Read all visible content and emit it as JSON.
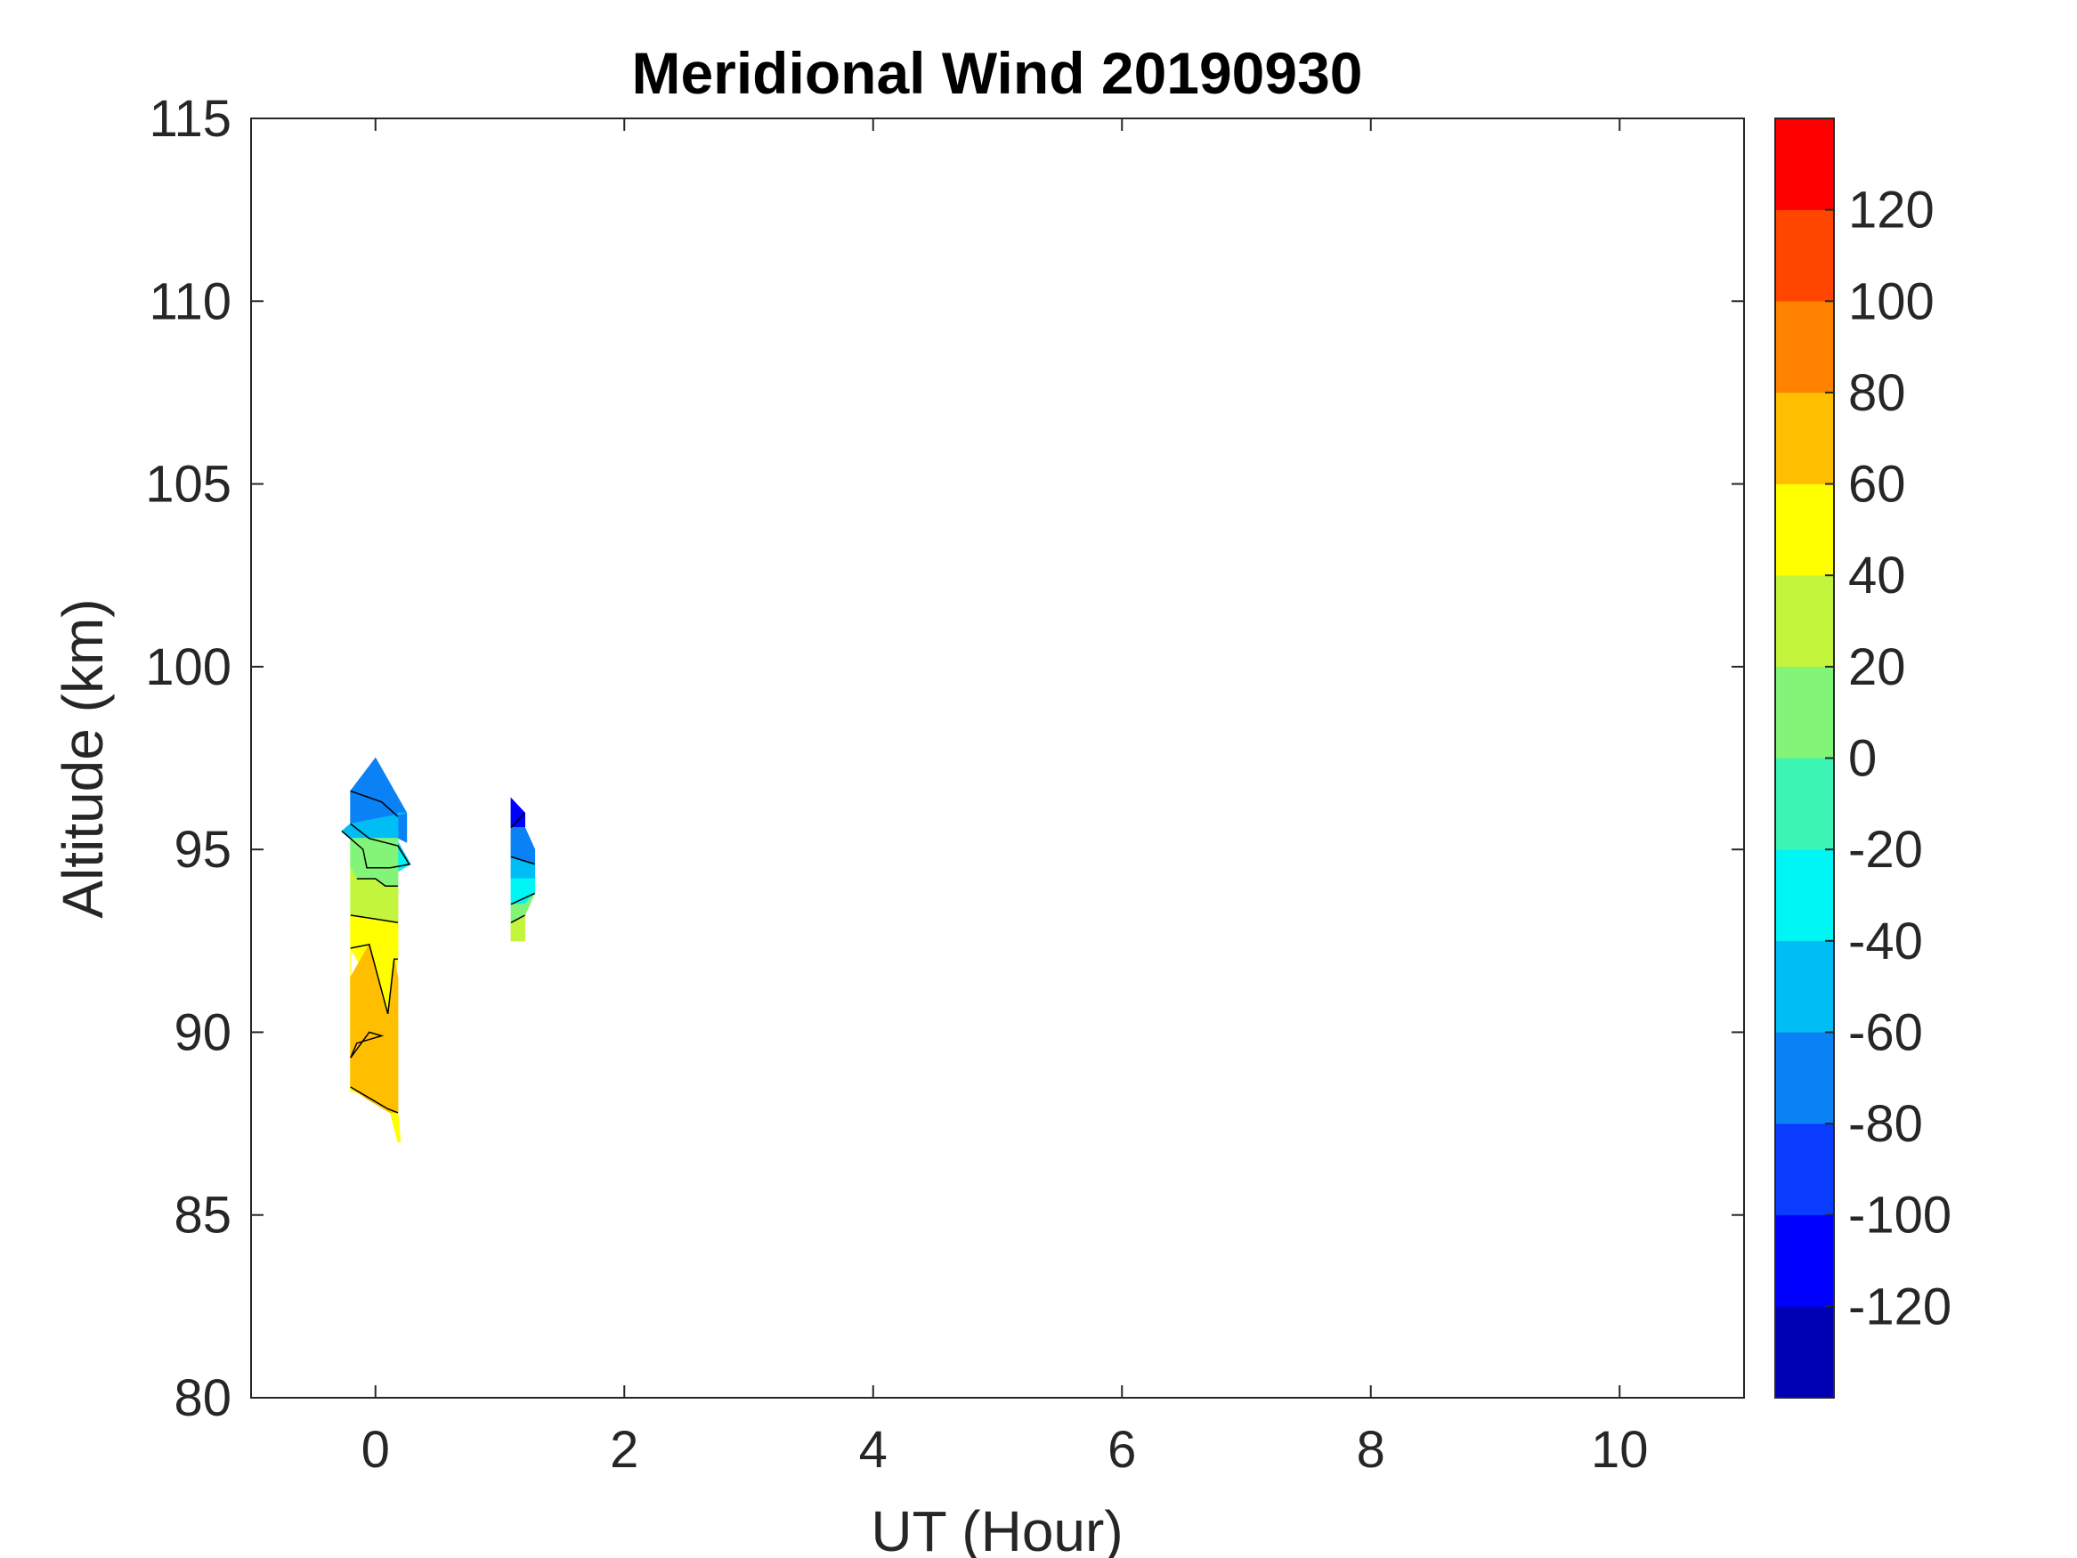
{
  "chart_data": {
    "type": "filled-contour",
    "title": "Meridional Wind 20190930",
    "xlabel": "UT (Hour)",
    "ylabel": "Altitude (km)",
    "xlim": [
      -1,
      11
    ],
    "ylim": [
      80,
      115
    ],
    "xticks": [
      0,
      2,
      4,
      6,
      8,
      10
    ],
    "yticks": [
      80,
      85,
      90,
      95,
      100,
      105,
      110,
      115
    ],
    "grid": false,
    "colorbar": {
      "position": "right",
      "range": [
        -140,
        140
      ],
      "ticks": [
        -120,
        -100,
        -80,
        -60,
        -40,
        -20,
        0,
        20,
        40,
        60,
        80,
        100,
        120
      ],
      "levels": [
        {
          "from": -140,
          "to": -120,
          "color": "#0000b4"
        },
        {
          "from": -120,
          "to": -100,
          "color": "#0000ff"
        },
        {
          "from": -100,
          "to": -80,
          "color": "#0a3cff"
        },
        {
          "from": -80,
          "to": -60,
          "color": "#0a82f5"
        },
        {
          "from": -60,
          "to": -40,
          "color": "#00bef5"
        },
        {
          "from": -40,
          "to": -20,
          "color": "#00f5f5"
        },
        {
          "from": -20,
          "to": 0,
          "color": "#3cf5b4"
        },
        {
          "from": 0,
          "to": 20,
          "color": "#82f578"
        },
        {
          "from": 20,
          "to": 40,
          "color": "#c3f53c"
        },
        {
          "from": 40,
          "to": 60,
          "color": "#ffff00"
        },
        {
          "from": 60,
          "to": 80,
          "color": "#ffbe00"
        },
        {
          "from": 80,
          "to": 100,
          "color": "#ff8200"
        },
        {
          "from": 100,
          "to": 120,
          "color": "#ff4600"
        },
        {
          "from": 120,
          "to": 140,
          "color": "#ff0000"
        }
      ]
    },
    "regions": [
      {
        "name": "column-0UT",
        "value": -80,
        "ut": [
          0,
          0.25,
          0.25,
          0.07,
          -0.2,
          -0.2
        ],
        "alt": [
          97.5,
          96.0,
          95.2,
          95.5,
          95.7,
          96.6
        ]
      },
      {
        "name": "column-0UT",
        "value": -50,
        "ut": [
          0.18,
          0.18,
          0.28,
          0.12,
          -0.07,
          -0.1,
          -0.27,
          -0.2,
          0.25
        ],
        "alt": [
          96.0,
          95.2,
          94.6,
          94.5,
          94.5,
          95.0,
          95.5,
          95.7,
          96.0
        ]
      },
      {
        "name": "column-0UT",
        "value": -30,
        "ut": [
          0.28,
          0.18,
          0.12,
          -0.07,
          -0.1,
          -0.27,
          -0.2,
          0.18,
          0.18
        ],
        "alt": [
          94.6,
          94.4,
          94.5,
          94.5,
          95.0,
          95.5,
          95.3,
          95.3,
          95.0
        ]
      },
      {
        "name": "column-0UT",
        "value": 10,
        "ut": [
          0.18,
          0.18,
          0.08,
          0.0,
          -0.15,
          -0.2,
          -0.2,
          0.18
        ],
        "alt": [
          95.3,
          94.0,
          94.0,
          94.2,
          94.2,
          94.5,
          95.3,
          95.3
        ]
      },
      {
        "name": "column-0UT",
        "value": 30,
        "ut": [
          0.18,
          0.18,
          -0.2,
          -0.2,
          -0.15,
          0.0,
          0.08,
          0.18
        ],
        "alt": [
          94.0,
          93.0,
          93.2,
          94.5,
          94.2,
          94.2,
          94.0,
          94.0
        ]
      },
      {
        "name": "column-0UT",
        "value": 50,
        "ut": [
          0.18,
          0.18,
          0.1,
          -0.2,
          -0.2,
          -0.2,
          -0.2,
          -0.08,
          0.12,
          0.18,
          0.2,
          0.18,
          0.18,
          0.18,
          0.0,
          -0.2,
          -0.2
        ],
        "alt": [
          93.0,
          92.0,
          90.5,
          92.3,
          91.5,
          88.5,
          88.5,
          88.2,
          87.8,
          87.0,
          87.0,
          87.8,
          87.8,
          88.0,
          88.2,
          88.4,
          93.2
        ]
      },
      {
        "name": "column-0UT",
        "value": 70,
        "ut": [
          0.15,
          0.1,
          -0.05,
          -0.2,
          -0.2,
          -0.2,
          -0.08,
          0.12,
          0.18,
          0.18,
          0.18,
          0.15
        ],
        "alt": [
          92.0,
          90.5,
          92.4,
          91.5,
          90.0,
          88.5,
          88.2,
          87.8,
          87.8,
          90.0,
          91.5,
          92.0
        ]
      },
      {
        "name": "column-1.1UT",
        "value": -110,
        "ut": [
          1.09,
          1.2,
          1.2,
          1.09
        ],
        "alt": [
          96.4,
          96.0,
          95.6,
          95.6
        ]
      },
      {
        "name": "column-1.1UT",
        "value": -70,
        "ut": [
          1.09,
          1.2,
          1.28,
          1.28,
          1.09
        ],
        "alt": [
          95.6,
          95.6,
          95.0,
          94.6,
          94.8
        ]
      },
      {
        "name": "column-1.1UT",
        "value": -50,
        "ut": [
          1.09,
          1.28,
          1.28,
          1.09
        ],
        "alt": [
          94.8,
          94.6,
          94.2,
          94.2
        ]
      },
      {
        "name": "column-1.1UT",
        "value": -30,
        "ut": [
          1.09,
          1.28,
          1.28,
          1.2,
          1.09
        ],
        "alt": [
          94.2,
          94.2,
          93.8,
          93.5,
          93.5
        ]
      },
      {
        "name": "column-1.1UT",
        "value": 10,
        "ut": [
          1.09,
          1.2,
          1.28,
          1.2,
          1.09
        ],
        "alt": [
          93.5,
          93.5,
          93.8,
          93.2,
          93.0
        ]
      },
      {
        "name": "column-1.1UT",
        "value": 30,
        "ut": [
          1.09,
          1.2,
          1.2,
          1.09
        ],
        "alt": [
          93.0,
          93.2,
          92.5,
          92.5
        ]
      }
    ],
    "contours": [
      {
        "ut": [
          -0.2,
          0.05,
          0.18
        ],
        "alt": [
          96.6,
          96.3,
          95.9
        ]
      },
      {
        "ut": [
          -0.2,
          -0.05,
          0.18,
          0.27
        ],
        "alt": [
          95.7,
          95.3,
          95.1,
          94.6
        ]
      },
      {
        "ut": [
          -0.27,
          -0.1,
          -0.07,
          0.12,
          0.28
        ],
        "alt": [
          95.5,
          95.0,
          94.5,
          94.5,
          94.6
        ]
      },
      {
        "ut": [
          -0.15,
          0.0,
          0.08,
          0.18
        ],
        "alt": [
          94.2,
          94.2,
          94.0,
          94.0
        ]
      },
      {
        "ut": [
          -0.2,
          0.0,
          0.18
        ],
        "alt": [
          93.2,
          93.1,
          93.0
        ]
      },
      {
        "ut": [
          -0.2,
          -0.05,
          0.1,
          0.15,
          0.18
        ],
        "alt": [
          92.3,
          92.4,
          90.5,
          92.0,
          92.0
        ]
      },
      {
        "ut": [
          -0.2,
          -0.05,
          0.1,
          0.18,
          0.18
        ],
        "alt": [
          88.5,
          88.2,
          87.9,
          87.8,
          87.8
        ]
      },
      {
        "ut": [
          -0.2,
          -0.05,
          0.05,
          -0.15,
          -0.2
        ],
        "alt": [
          89.3,
          90.0,
          89.9,
          89.7,
          89.3
        ]
      },
      {
        "ut": [
          1.09,
          1.2
        ],
        "alt": [
          95.6,
          96.0
        ]
      },
      {
        "ut": [
          1.09,
          1.28
        ],
        "alt": [
          94.8,
          94.6
        ]
      },
      {
        "ut": [
          1.09,
          1.28
        ],
        "alt": [
          93.5,
          93.8
        ]
      },
      {
        "ut": [
          1.09,
          1.2
        ],
        "alt": [
          93.0,
          93.2
        ]
      }
    ]
  }
}
